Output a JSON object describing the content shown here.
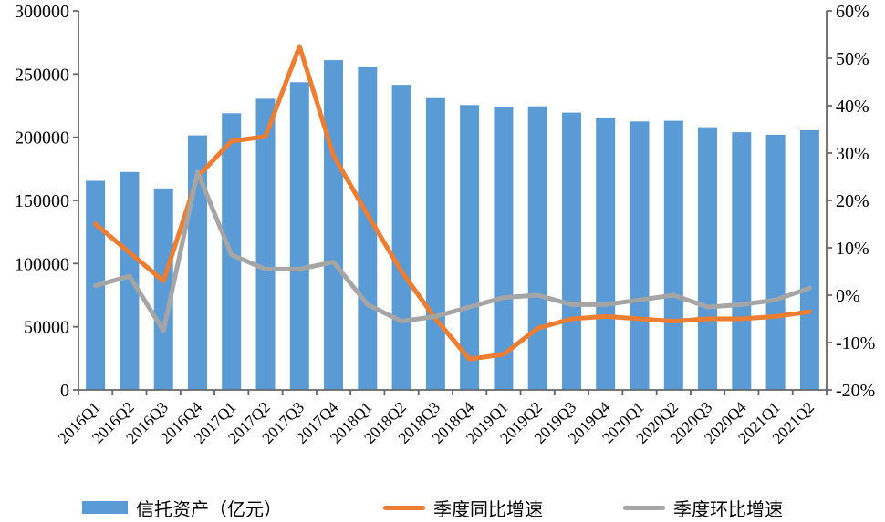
{
  "chart_data": {
    "type": "combo-bar-line",
    "title": "",
    "categories": [
      "2016Q1",
      "2016Q2",
      "2016Q3",
      "2016Q4",
      "2017Q1",
      "2017Q2",
      "2017Q3",
      "2017Q4",
      "2018Q1",
      "2018Q2",
      "2018Q3",
      "2018Q4",
      "2019Q1",
      "2019Q2",
      "2019Q3",
      "2019Q4",
      "2020Q1",
      "2020Q2",
      "2020Q3",
      "2020Q4",
      "2021Q1",
      "2021Q2"
    ],
    "series": [
      {
        "name": "信托资产（亿元）",
        "type": "bar",
        "axis": "left",
        "color": "#5B9BD5",
        "values": [
          165500,
          172500,
          159500,
          201500,
          219000,
          230500,
          243500,
          261000,
          256000,
          241500,
          231000,
          225500,
          224000,
          224500,
          219500,
          215000,
          212500,
          213000,
          208000,
          204000,
          202000,
          205500
        ]
      },
      {
        "name": "季度同比增速",
        "type": "line",
        "axis": "right",
        "color": "#ED7D31",
        "values": [
          15,
          9,
          3,
          25,
          32.5,
          33.5,
          52.5,
          29.5,
          17,
          5,
          -5,
          -13.5,
          -12.5,
          -7,
          -5,
          -4.5,
          -5,
          -5.5,
          -5,
          -5,
          -4.5,
          -3.5
        ]
      },
      {
        "name": "季度环比增速",
        "type": "line",
        "axis": "right",
        "color": "#A5A5A5",
        "values": [
          2,
          4,
          -7.5,
          26,
          8.5,
          5.5,
          5.5,
          7,
          -2,
          -5.5,
          -4.5,
          -2.5,
          -0.5,
          0,
          -2,
          -2,
          -1,
          0,
          -2.5,
          -2,
          -1,
          1.5
        ]
      }
    ],
    "left_axis": {
      "min": 0,
      "max": 300000,
      "tick_step": 50000,
      "tick_labels": [
        "0",
        "50000",
        "100000",
        "150000",
        "200000",
        "250000",
        "300000"
      ]
    },
    "right_axis": {
      "min": -20,
      "max": 60,
      "tick_step": 10,
      "tick_labels": [
        "-20%",
        "-10%",
        "0%",
        "10%",
        "20%",
        "30%",
        "40%",
        "50%",
        "60%"
      ]
    },
    "grid": false,
    "legend_position": "bottom"
  },
  "colors": {
    "background": "#FFFFFF",
    "bar": "#5B9BD5",
    "yoy_line": "#ED7D31",
    "qoq_line": "#A5A5A5",
    "axis_line": "#666666",
    "text": "#000000"
  },
  "legend": {
    "items": [
      {
        "label": "信托资产（亿元）",
        "swatch": "bar-swatch"
      },
      {
        "label": "季度同比增速",
        "swatch": "line-swatch"
      },
      {
        "label": "季度环比增速",
        "swatch": "line-swatch"
      }
    ]
  }
}
